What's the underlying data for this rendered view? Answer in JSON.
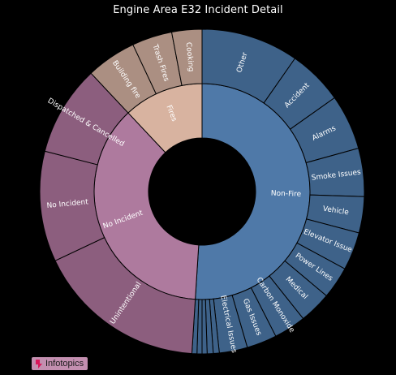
{
  "chart_data": {
    "type": "sunburst",
    "title": "Engine Area E32 Incident Detail",
    "inner": [
      {
        "name": "Non-Fire",
        "value": 51,
        "color": "#4f79a8"
      },
      {
        "name": "No Incident",
        "value": 37,
        "color": "#ae7a9e"
      },
      {
        "name": "Fires",
        "value": 12,
        "color": "#d8b3a0"
      }
    ],
    "outer": [
      {
        "name": "Other",
        "parent": "Non-Fire",
        "value": 9.7
      },
      {
        "name": "Accident",
        "parent": "Non-Fire",
        "value": 5.5
      },
      {
        "name": "Alarms",
        "parent": "Non-Fire",
        "value": 5.5
      },
      {
        "name": "Smoke Issues",
        "parent": "Non-Fire",
        "value": 4.8
      },
      {
        "name": "Vehicle",
        "parent": "Non-Fire",
        "value": 3.6
      },
      {
        "name": "Elevator Issue",
        "parent": "Non-Fire",
        "value": 3.8
      },
      {
        "name": "Power Lines",
        "parent": "Non-Fire",
        "value": 3.2
      },
      {
        "name": "Medical",
        "parent": "Non-Fire",
        "value": 3.2
      },
      {
        "name": "Carbon Monoxide",
        "parent": "Non-Fire",
        "value": 3.2
      },
      {
        "name": "Gas Issues",
        "parent": "Non-Fire",
        "value": 3.0
      },
      {
        "name": "Electrical Issues",
        "parent": "Non-Fire",
        "value": 2.8
      },
      {
        "name": "",
        "parent": "Non-Fire",
        "value": 0.6
      },
      {
        "name": "",
        "parent": "Non-Fire",
        "value": 0.6
      },
      {
        "name": "",
        "parent": "Non-Fire",
        "value": 0.5
      },
      {
        "name": "",
        "parent": "Non-Fire",
        "value": 0.5
      },
      {
        "name": "",
        "parent": "Non-Fire",
        "value": 0.5
      },
      {
        "name": "Unintentional",
        "parent": "No Incident",
        "value": 17
      },
      {
        "name": "No Incident",
        "parent": "No Incident",
        "value": 11
      },
      {
        "name": "Dispatched & Cancelled",
        "parent": "No Incident",
        "value": 9
      },
      {
        "name": "Building fire",
        "parent": "Fires",
        "value": 5
      },
      {
        "name": "Trash Fires",
        "parent": "Fires",
        "value": 4
      },
      {
        "name": "Cooking",
        "parent": "Fires",
        "value": 3
      }
    ],
    "outer_colors": {
      "Non-Fire": "#3e6289",
      "No Incident": "#8c5e7e",
      "Fires": "#ab8f82"
    }
  },
  "branding": {
    "label": "Infotopics",
    "color": "#c38fb0"
  }
}
